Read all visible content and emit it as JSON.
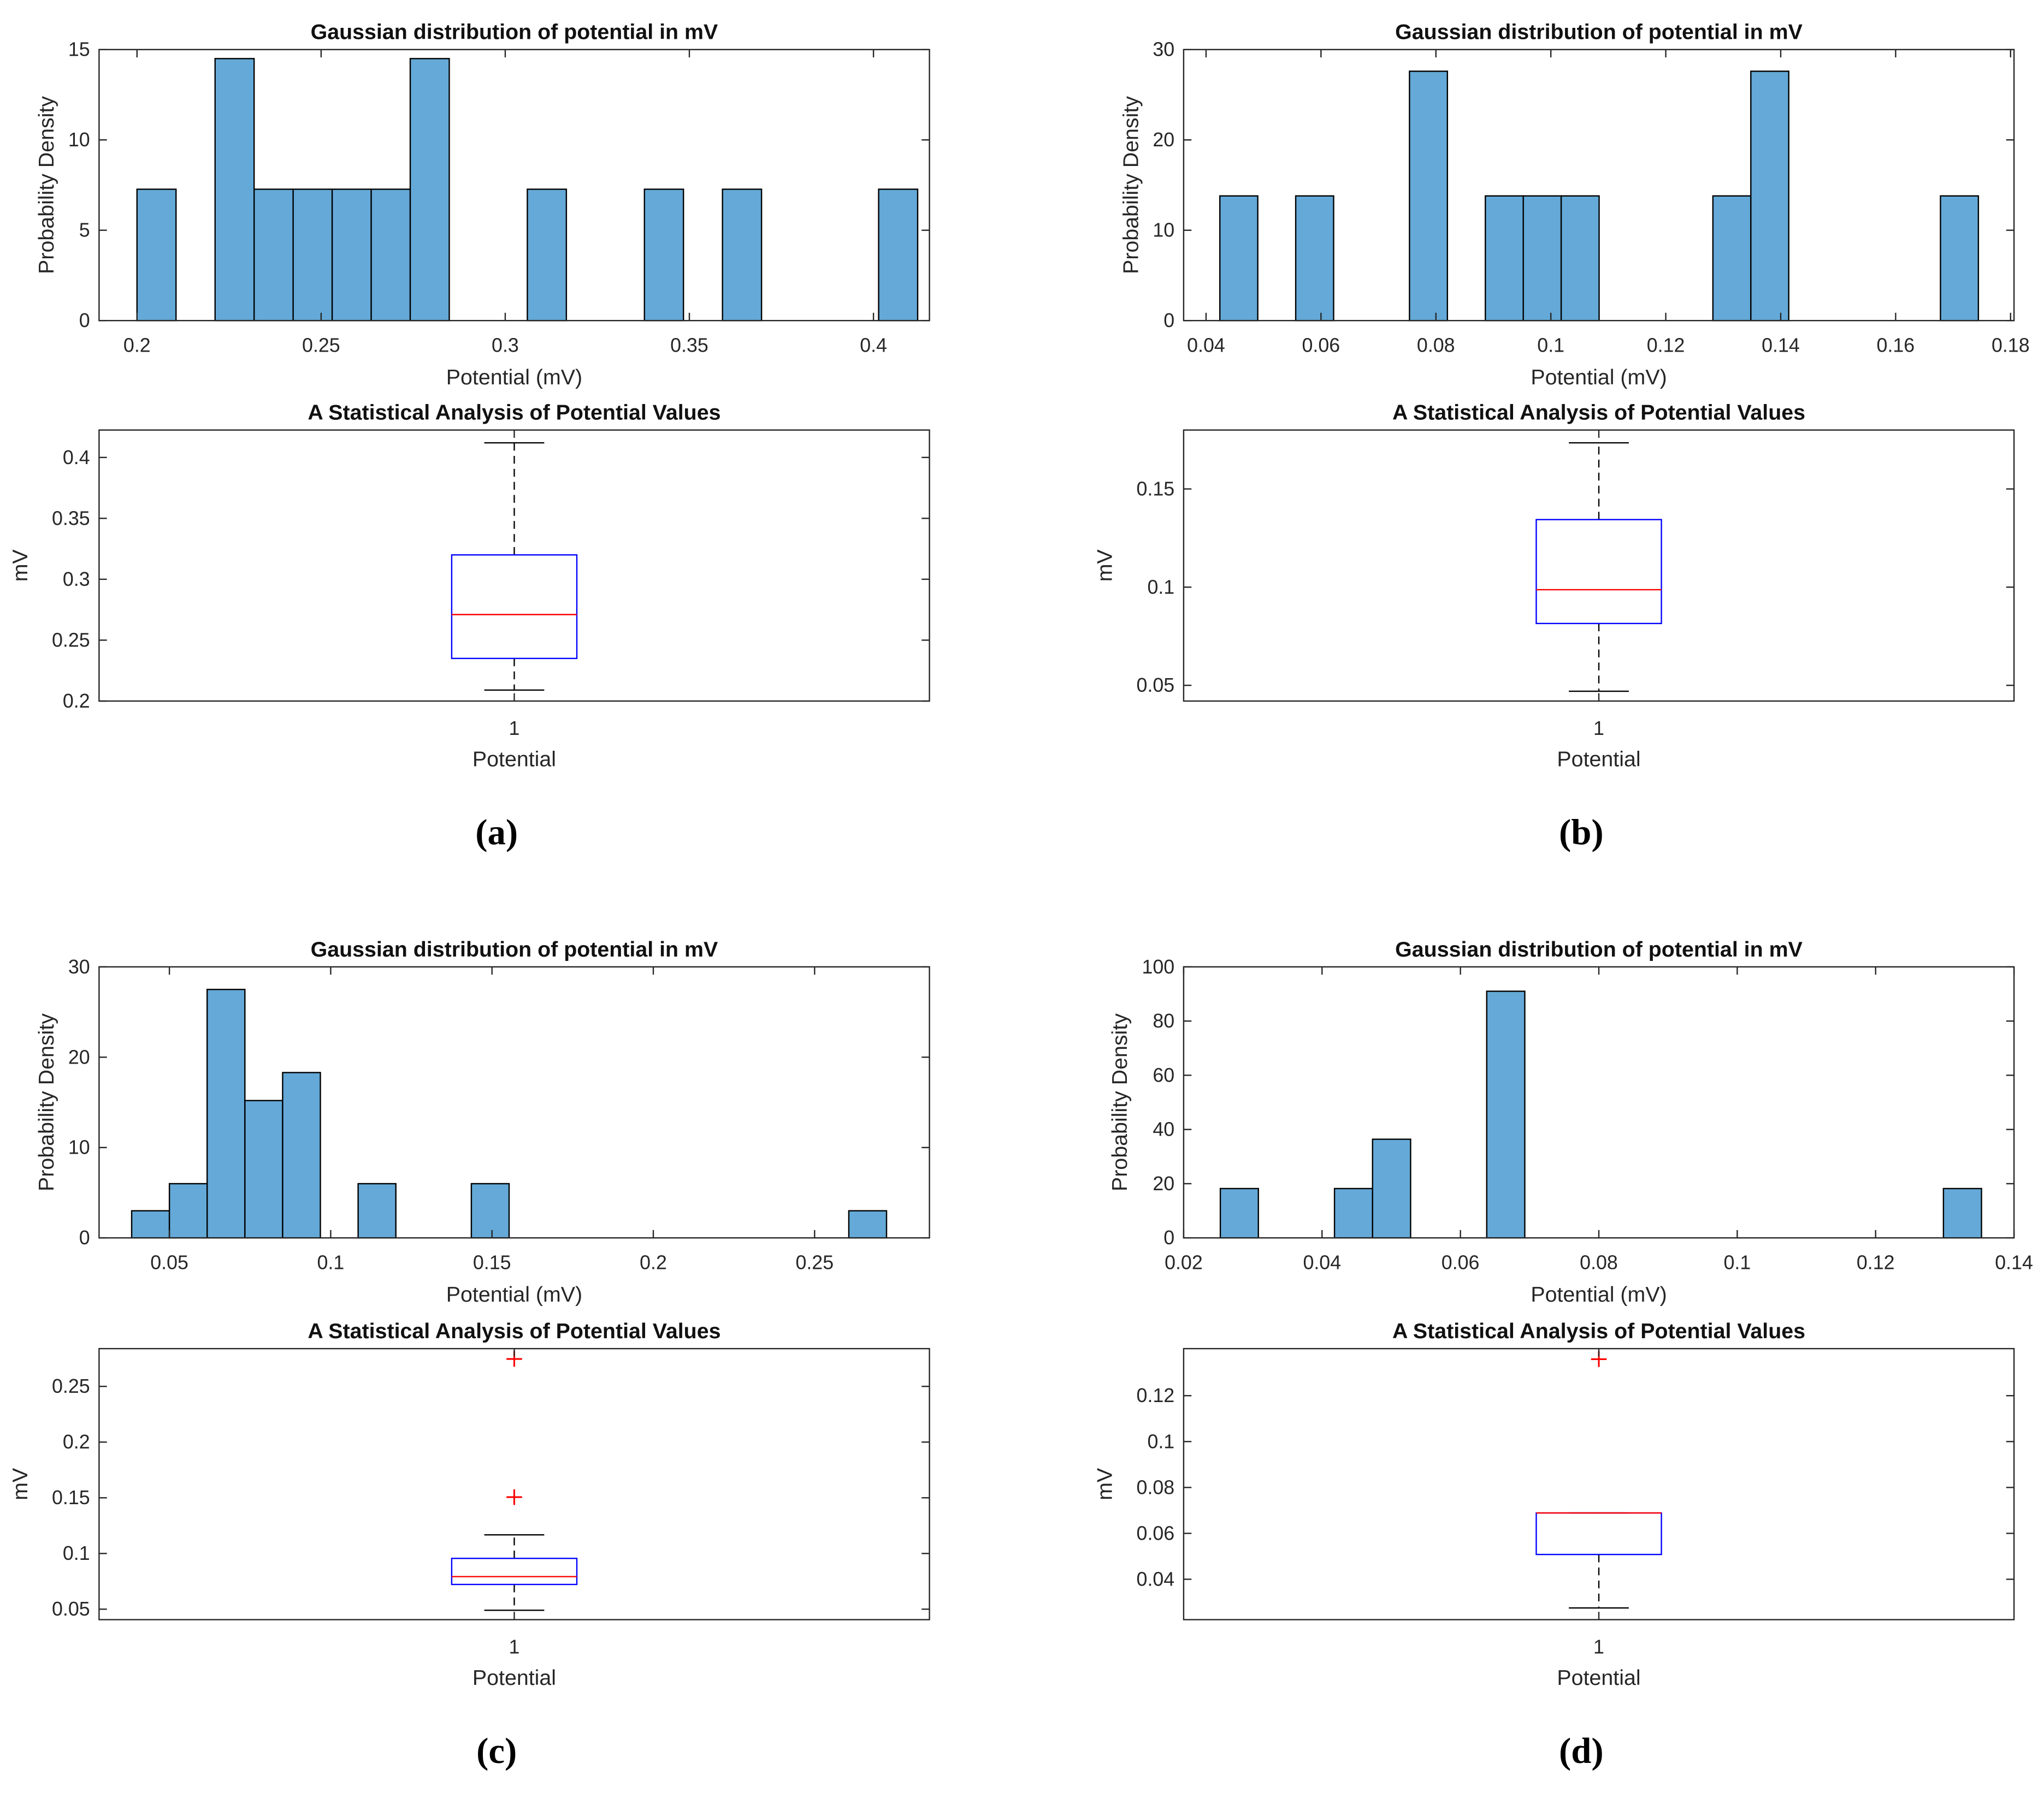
{
  "colors": {
    "bar_fill": "#64a9d7",
    "bar_edge": "#000000",
    "box": "#0000ff",
    "median": "#ff0000",
    "outlier": "#ff0000",
    "whisker": "#000000"
  },
  "chart_data": [
    {
      "panel_label": "(a)",
      "histogram": {
        "type": "bar",
        "title": "Gaussian distribution of potential in mV",
        "xlabel": "Potential (mV)",
        "ylabel": "Probability Density",
        "xlim": [
          0.1897,
          0.4152
        ],
        "ylim": [
          0,
          15
        ],
        "xticks": [
          0.2,
          0.25,
          0.3,
          0.35,
          0.4
        ],
        "xtick_labels": [
          "0.2",
          "0.25",
          "0.3",
          "0.35",
          "0.4"
        ],
        "yticks": [
          0,
          5,
          10,
          15
        ],
        "ytick_labels": [
          "0",
          "5",
          "10",
          "15"
        ],
        "bin_start": 0.2,
        "bin_width": 0.0106,
        "values": [
          7.27,
          0,
          14.5,
          7.27,
          7.27,
          7.27,
          7.27,
          14.5,
          0,
          0,
          7.27,
          0,
          0,
          7.27,
          0,
          7.27,
          0,
          0,
          0,
          7.27
        ]
      },
      "boxplot": {
        "type": "box",
        "title": "A Statistical Analysis of Potential Values",
        "xlabel": "Potential",
        "ylabel": "mV",
        "xtick_labels": [
          "1"
        ],
        "ylim": [
          0.2,
          0.4225
        ],
        "yticks": [
          0.2,
          0.25,
          0.3,
          0.35,
          0.4
        ],
        "ytick_labels": [
          "0.2",
          "0.25",
          "0.3",
          "0.35",
          "0.4"
        ],
        "whisker_low": 0.209,
        "q1": 0.235,
        "median": 0.271,
        "q3": 0.32,
        "whisker_high": 0.412,
        "outliers": []
      }
    },
    {
      "panel_label": "(b)",
      "histogram": {
        "type": "bar",
        "title": "Gaussian distribution of potential in mV",
        "xlabel": "Potential (mV)",
        "ylabel": "Probability Density",
        "xlim": [
          0.0361,
          0.1806
        ],
        "ylim": [
          0,
          30
        ],
        "xticks": [
          0.04,
          0.06,
          0.08,
          0.1,
          0.12,
          0.14,
          0.16,
          0.18
        ],
        "xtick_labels": [
          "0.04",
          "0.06",
          "0.08",
          "0.1",
          "0.12",
          "0.14",
          "0.16",
          "0.18"
        ],
        "yticks": [
          0,
          10,
          20,
          30
        ],
        "ytick_labels": [
          "0",
          "10",
          "20",
          "30"
        ],
        "bin_start": 0.0424,
        "bin_width": 0.0066,
        "values": [
          13.8,
          0,
          13.8,
          0,
          0,
          27.6,
          0,
          13.8,
          13.8,
          13.8,
          0,
          0,
          0,
          13.8,
          27.6,
          0,
          0,
          0,
          0,
          13.8
        ]
      },
      "boxplot": {
        "type": "box",
        "title": "A Statistical Analysis of Potential Values",
        "xlabel": "Potential",
        "ylabel": "mV",
        "xtick_labels": [
          "1"
        ],
        "ylim": [
          0.042,
          0.18
        ],
        "yticks": [
          0.05,
          0.1,
          0.15
        ],
        "ytick_labels": [
          "0.05",
          "0.1",
          "0.15"
        ],
        "whisker_low": 0.047,
        "q1": 0.0815,
        "median": 0.0987,
        "q3": 0.1344,
        "whisker_high": 0.1735,
        "outliers": []
      }
    },
    {
      "panel_label": "(c)",
      "histogram": {
        "type": "bar",
        "title": "Gaussian distribution of potential in mV",
        "xlabel": "Potential (mV)",
        "ylabel": "Probability Density",
        "xlim": [
          0.0282,
          0.2856
        ],
        "ylim": [
          0,
          30
        ],
        "xticks": [
          0.05,
          0.1,
          0.15,
          0.2,
          0.25
        ],
        "xtick_labels": [
          "0.05",
          "0.1",
          "0.15",
          "0.2",
          "0.25"
        ],
        "yticks": [
          0,
          10,
          20,
          30
        ],
        "ytick_labels": [
          "0",
          "10",
          "20",
          "30"
        ],
        "bin_start": 0.0383,
        "bin_width": 0.0117,
        "values": [
          3,
          6,
          27.5,
          15.2,
          18.3,
          0,
          6,
          0,
          0,
          6,
          0,
          0,
          0,
          0,
          0,
          0,
          0,
          0,
          0,
          3
        ]
      },
      "boxplot": {
        "type": "box",
        "title": "A Statistical Analysis of Potential Values",
        "xlabel": "Potential",
        "ylabel": "mV",
        "xtick_labels": [
          "1"
        ],
        "ylim": [
          0.0406,
          0.2839
        ],
        "yticks": [
          0.05,
          0.1,
          0.15,
          0.2,
          0.25
        ],
        "ytick_labels": [
          "0.05",
          "0.1",
          "0.15",
          "0.2",
          "0.25"
        ],
        "whisker_low": 0.049,
        "q1": 0.0722,
        "median": 0.0792,
        "q3": 0.0956,
        "whisker_high": 0.1167,
        "outliers": [
          0.2746,
          0.1506
        ]
      }
    },
    {
      "panel_label": "(d)",
      "histogram": {
        "type": "bar",
        "title": "Gaussian distribution of potential in mV",
        "xlabel": "Potential (mV)",
        "ylabel": "Probability Density",
        "xlim": [
          0.02,
          0.14
        ],
        "ylim": [
          0,
          100
        ],
        "xticks": [
          0.02,
          0.04,
          0.06,
          0.08,
          0.1,
          0.12,
          0.14
        ],
        "xtick_labels": [
          "0.02",
          "0.04",
          "0.06",
          "0.08",
          "0.1",
          "0.12",
          "0.14"
        ],
        "yticks": [
          0,
          20,
          40,
          60,
          80,
          100
        ],
        "ytick_labels": [
          "0",
          "20",
          "40",
          "60",
          "80",
          "100"
        ],
        "bin_start": 0.0253,
        "bin_width": 0.0055,
        "values": [
          18.2,
          0,
          0,
          18.2,
          36.4,
          0,
          0,
          91,
          0,
          0,
          0,
          0,
          0,
          0,
          0,
          0,
          0,
          0,
          0,
          18.2
        ]
      },
      "boxplot": {
        "type": "box",
        "title": "A Statistical Analysis of Potential Values",
        "xlabel": "Potential",
        "ylabel": "mV",
        "xtick_labels": [
          "1"
        ],
        "ylim": [
          0.0224,
          0.1405
        ],
        "yticks": [
          0.04,
          0.06,
          0.08,
          0.1,
          0.12
        ],
        "ytick_labels": [
          "0.04",
          "0.06",
          "0.08",
          "0.1",
          "0.12"
        ],
        "whisker_low": 0.0275,
        "q1": 0.0508,
        "median": 0.0689,
        "q3": 0.0689,
        "whisker_high": 0.0689,
        "outliers": [
          0.1359
        ]
      }
    }
  ]
}
